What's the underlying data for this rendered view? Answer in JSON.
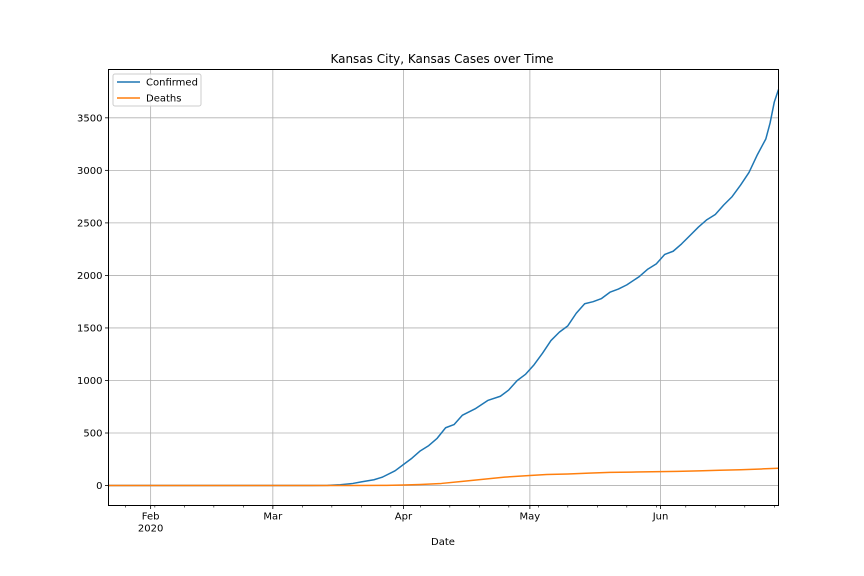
{
  "chart_data": {
    "type": "line",
    "title": "Kansas City, Kansas Cases over Time",
    "xlabel": "Date",
    "ylabel": "",
    "x_range": [
      "2020-01-22",
      "2020-06-29"
    ],
    "ylim": [
      -190,
      3960
    ],
    "grid": true,
    "legend_position": "top-left",
    "x_ticks": [
      {
        "date": "2020-02-01",
        "label": "Feb",
        "sublabel": "2020"
      },
      {
        "date": "2020-03-01",
        "label": "Mar",
        "sublabel": ""
      },
      {
        "date": "2020-04-01",
        "label": "Apr",
        "sublabel": ""
      },
      {
        "date": "2020-05-01",
        "label": "May",
        "sublabel": ""
      },
      {
        "date": "2020-06-01",
        "label": "Jun",
        "sublabel": ""
      }
    ],
    "y_ticks": [
      0,
      500,
      1000,
      1500,
      2000,
      2500,
      3000,
      3500
    ],
    "series": [
      {
        "name": "Confirmed",
        "color": "#1f77b4",
        "points": [
          [
            "2020-01-22",
            0
          ],
          [
            "2020-03-10",
            0
          ],
          [
            "2020-03-14",
            2
          ],
          [
            "2020-03-17",
            8
          ],
          [
            "2020-03-20",
            20
          ],
          [
            "2020-03-22",
            35
          ],
          [
            "2020-03-25",
            55
          ],
          [
            "2020-03-27",
            80
          ],
          [
            "2020-03-30",
            140
          ],
          [
            "2020-04-01",
            200
          ],
          [
            "2020-04-03",
            260
          ],
          [
            "2020-04-05",
            330
          ],
          [
            "2020-04-07",
            380
          ],
          [
            "2020-04-09",
            450
          ],
          [
            "2020-04-11",
            550
          ],
          [
            "2020-04-13",
            580
          ],
          [
            "2020-04-15",
            670
          ],
          [
            "2020-04-18",
            730
          ],
          [
            "2020-04-21",
            810
          ],
          [
            "2020-04-24",
            850
          ],
          [
            "2020-04-26",
            910
          ],
          [
            "2020-04-28",
            1000
          ],
          [
            "2020-04-30",
            1060
          ],
          [
            "2020-05-02",
            1150
          ],
          [
            "2020-05-04",
            1260
          ],
          [
            "2020-05-06",
            1380
          ],
          [
            "2020-05-08",
            1460
          ],
          [
            "2020-05-10",
            1520
          ],
          [
            "2020-05-12",
            1640
          ],
          [
            "2020-05-14",
            1730
          ],
          [
            "2020-05-16",
            1750
          ],
          [
            "2020-05-18",
            1780
          ],
          [
            "2020-05-20",
            1840
          ],
          [
            "2020-05-22",
            1870
          ],
          [
            "2020-05-24",
            1910
          ],
          [
            "2020-05-27",
            1990
          ],
          [
            "2020-05-29",
            2060
          ],
          [
            "2020-05-31",
            2110
          ],
          [
            "2020-06-02",
            2200
          ],
          [
            "2020-06-04",
            2230
          ],
          [
            "2020-06-06",
            2300
          ],
          [
            "2020-06-08",
            2380
          ],
          [
            "2020-06-10",
            2460
          ],
          [
            "2020-06-12",
            2530
          ],
          [
            "2020-06-14",
            2580
          ],
          [
            "2020-06-16",
            2670
          ],
          [
            "2020-06-18",
            2750
          ],
          [
            "2020-06-20",
            2860
          ],
          [
            "2020-06-22",
            2980
          ],
          [
            "2020-06-24",
            3150
          ],
          [
            "2020-06-26",
            3300
          ],
          [
            "2020-06-27",
            3450
          ],
          [
            "2020-06-28",
            3650
          ],
          [
            "2020-06-29",
            3770
          ]
        ]
      },
      {
        "name": "Deaths",
        "color": "#ff7f0e",
        "points": [
          [
            "2020-01-22",
            0
          ],
          [
            "2020-03-20",
            0
          ],
          [
            "2020-03-28",
            2
          ],
          [
            "2020-04-01",
            5
          ],
          [
            "2020-04-05",
            10
          ],
          [
            "2020-04-10",
            20
          ],
          [
            "2020-04-15",
            40
          ],
          [
            "2020-04-20",
            60
          ],
          [
            "2020-04-25",
            80
          ],
          [
            "2020-05-01",
            95
          ],
          [
            "2020-05-05",
            105
          ],
          [
            "2020-05-10",
            110
          ],
          [
            "2020-05-15",
            118
          ],
          [
            "2020-05-20",
            125
          ],
          [
            "2020-05-25",
            128
          ],
          [
            "2020-06-01",
            132
          ],
          [
            "2020-06-05",
            135
          ],
          [
            "2020-06-10",
            140
          ],
          [
            "2020-06-15",
            145
          ],
          [
            "2020-06-20",
            150
          ],
          [
            "2020-06-25",
            158
          ],
          [
            "2020-06-29",
            165
          ]
        ]
      }
    ]
  }
}
